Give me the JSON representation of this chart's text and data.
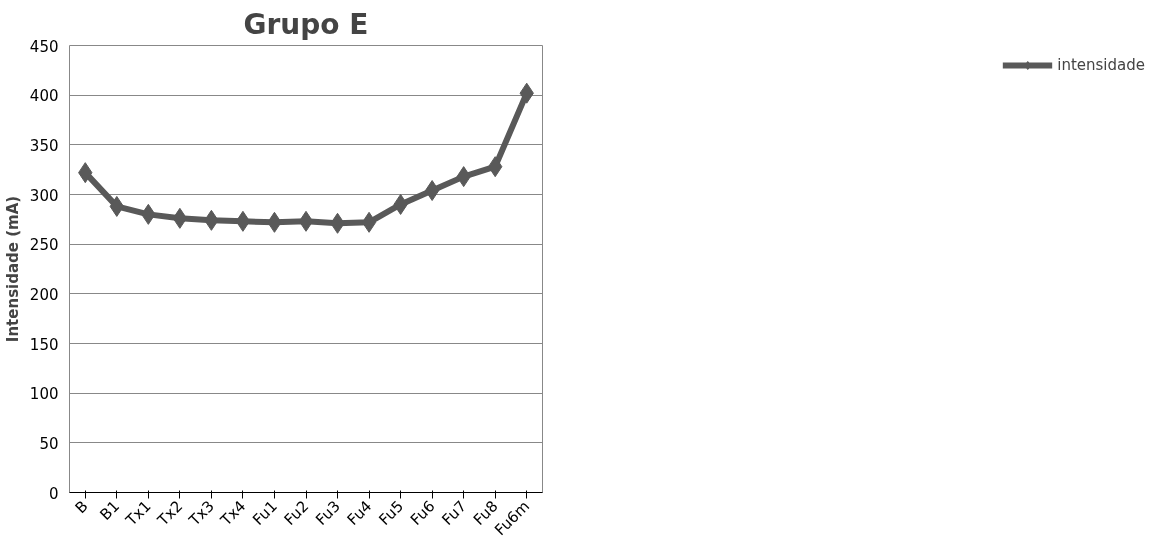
{
  "chart_data": {
    "type": "line",
    "title": "Grupo E",
    "ylabel": "Intensidade (mA)",
    "categories": [
      "B",
      "B1",
      "Tx1",
      "Tx2",
      "Tx3",
      "Tx4",
      "Fu1",
      "Fu2",
      "Fu3",
      "Fu4",
      "Fu5",
      "Fu6",
      "Fu7",
      "Fu8",
      "Fu6m"
    ],
    "series": [
      {
        "name": "intensidade",
        "color": "#595959",
        "values": [
          322,
          288,
          280,
          276,
          274,
          273,
          272,
          273,
          271,
          272,
          290,
          304,
          318,
          328,
          402
        ]
      }
    ],
    "ylim": [
      0,
      450
    ],
    "yticks": [
      0,
      50,
      100,
      150,
      200,
      250,
      300,
      350,
      400,
      450
    ],
    "grid": "y",
    "legend": "right",
    "marker": "diamond",
    "line_style": "solid"
  }
}
